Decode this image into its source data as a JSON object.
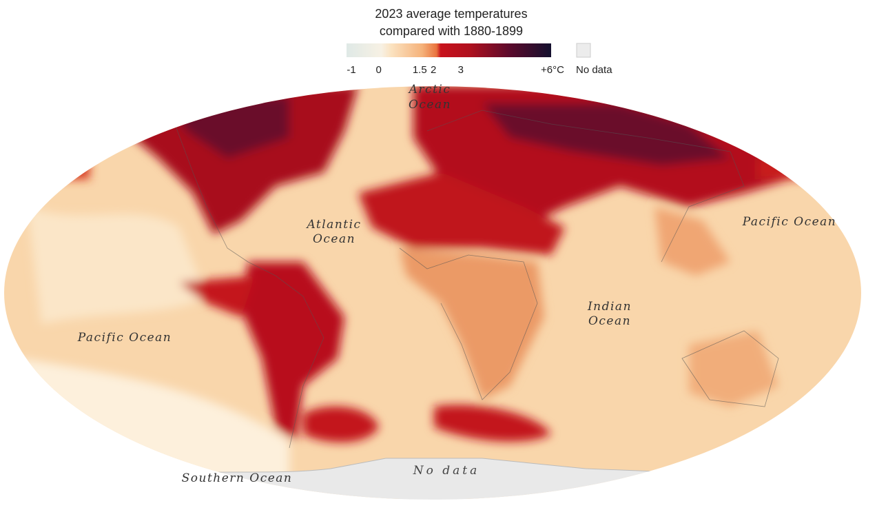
{
  "header": {
    "title_lines": [
      "2023 average temperatures",
      "compared with 1880-1899"
    ]
  },
  "legend": {
    "ticks": [
      -1,
      0,
      1.5,
      2,
      3,
      {
        "value": 6,
        "label": "+6°C"
      }
    ],
    "no_data_label": "No data"
  },
  "labels": [
    {
      "lines": [
        "Arctic",
        "Ocean"
      ]
    },
    {
      "lines": [
        "Atlantic",
        "Ocean"
      ]
    },
    {
      "lines": [
        "Pacific Ocean"
      ]
    },
    {
      "lines": [
        "Indian",
        "Ocean"
      ]
    },
    {
      "lines": [
        "Pacific Ocean"
      ]
    },
    {
      "lines": [
        "Southern Ocean"
      ]
    },
    {
      "lines": [
        "No data"
      ]
    }
  ]
}
